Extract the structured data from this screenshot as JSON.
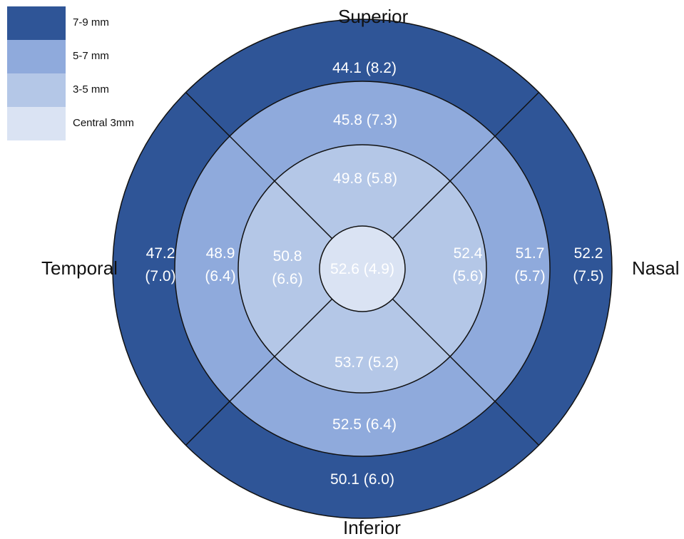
{
  "colors": {
    "ring_7_9": "#2f5597",
    "ring_5_7": "#8faadc",
    "ring_3_5": "#b4c7e7",
    "central": "#dae3f3",
    "border": "#111111",
    "text_light": "#ffffff"
  },
  "legend": [
    {
      "label": "7-9 mm",
      "color": "#2f5597"
    },
    {
      "label": "5-7 mm",
      "color": "#8faadc"
    },
    {
      "label": "3-5 mm",
      "color": "#b4c7e7"
    },
    {
      "label": "Central 3mm",
      "color": "#dae3f3"
    }
  ],
  "directions": {
    "superior": "Superior",
    "inferior": "Inferior",
    "temporal": "Temporal",
    "nasal": "Nasal"
  },
  "values": {
    "central": "52.6 (4.9)",
    "ring_3_5": {
      "superior": "49.8 (5.8)",
      "inferior": "53.7 (5.2)",
      "temporal": [
        "50.8",
        "(6.6)"
      ],
      "nasal": [
        "52.4",
        "(5.6)"
      ]
    },
    "ring_5_7": {
      "superior": "45.8 (7.3)",
      "inferior": "52.5 (6.4)",
      "temporal": [
        "48.9",
        "(6.4)"
      ],
      "nasal": [
        "51.7",
        "(5.7)"
      ]
    },
    "ring_7_9": {
      "superior": "44.1 (8.2)",
      "inferior": "50.1 (6.0)",
      "temporal": [
        "47.2",
        "(7.0)"
      ],
      "nasal": [
        "52.2",
        "(7.5)"
      ]
    }
  }
}
